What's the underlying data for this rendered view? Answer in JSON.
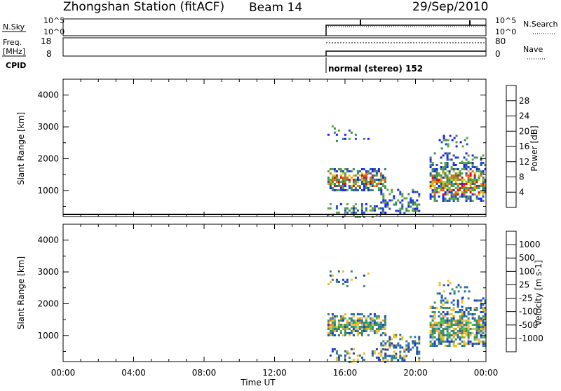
{
  "header": {
    "station": "Zhongshan Station (fitACF)",
    "beam": "Beam 14",
    "date": "29/Sep/2010"
  },
  "strips": {
    "nsky_label": "N.Sky",
    "nsearch_label": "N.Search",
    "nsky_ticks": [
      "10^5",
      "10^0"
    ],
    "freq_label_1": "Freq.",
    "freq_label_2": "[MHz]",
    "freq_ticks": [
      "18",
      "8"
    ],
    "nave_label": "Nave",
    "nave_ticks": [
      "80",
      "0"
    ],
    "cpid_label": "CPID",
    "cpid_text": "normal (stereo) 152"
  },
  "axes": {
    "xlabel": "Time UT",
    "ylabel": "Slant Range [km]",
    "x_ticks": [
      "00:00",
      "04:00",
      "08:00",
      "12:00",
      "16:00",
      "20:00",
      "00:00"
    ],
    "y_ticks": [
      "1000",
      "2000",
      "3000",
      "4000"
    ]
  },
  "power_scale": {
    "label": "Power [dB]",
    "ticks": [
      "4",
      "8",
      "12",
      "16",
      "20",
      "24",
      "28"
    ],
    "colors": [
      "#1f1fff",
      "#2850b8",
      "#3c8c5a",
      "#5aa83c",
      "#c8d020",
      "#f4a000",
      "#f06010",
      "#e01010"
    ]
  },
  "velocity_scale": {
    "label": "Velocity [m s-1]",
    "ticks": [
      "1000",
      "500",
      "100",
      "25",
      "-25",
      "-100",
      "-500",
      "-1000"
    ],
    "colors": [
      "#1f3fd0",
      "#2870a8",
      "#3c8c6a",
      "#50c050",
      "#c0c0c0",
      "#f0c020",
      "#f09010",
      "#f05010",
      "#e01010"
    ]
  },
  "chart_data": [
    {
      "type": "heatmap",
      "title": "Power",
      "xlabel": "Time UT",
      "ylabel": "Slant Range [km]",
      "xlim": [
        0,
        24
      ],
      "ylim": [
        180,
        4500
      ],
      "colorbar_label": "Power [dB]",
      "regions": [
        {
          "t": [
            15.0,
            18.3
          ],
          "r": [
            1000,
            1700
          ],
          "level": "12-20"
        },
        {
          "t": [
            15.0,
            17.5
          ],
          "r": [
            1150,
            1350
          ],
          "level": "24-28"
        },
        {
          "t": [
            18.0,
            20.0
          ],
          "r": [
            300,
            1000
          ],
          "level": "4-12"
        },
        {
          "t": [
            20.8,
            24.0
          ],
          "r": [
            700,
            1900
          ],
          "level": "16-28"
        },
        {
          "t": [
            21.0,
            23.0
          ],
          "r": [
            2300,
            2700
          ],
          "level": "4-8"
        },
        {
          "t": [
            15.0,
            17.2
          ],
          "r": [
            2600,
            3050
          ],
          "level": "4-8"
        }
      ]
    },
    {
      "type": "heatmap",
      "title": "Velocity",
      "xlabel": "Time UT",
      "ylabel": "Slant Range [km]",
      "xlim": [
        0,
        24
      ],
      "ylim": [
        180,
        4500
      ],
      "colorbar_label": "Velocity [m s-1]",
      "regions": [
        {
          "t": [
            15.0,
            18.3
          ],
          "r": [
            1000,
            1700
          ],
          "level": "-100 to 100"
        },
        {
          "t": [
            18.0,
            20.0
          ],
          "r": [
            300,
            1000
          ],
          "level": "25 to 500"
        },
        {
          "t": [
            20.8,
            24.0
          ],
          "r": [
            700,
            1900
          ],
          "level": "-100 to 100"
        },
        {
          "t": [
            21.0,
            23.0
          ],
          "r": [
            2300,
            2700
          ],
          "level": "-25 to 25"
        }
      ]
    }
  ]
}
